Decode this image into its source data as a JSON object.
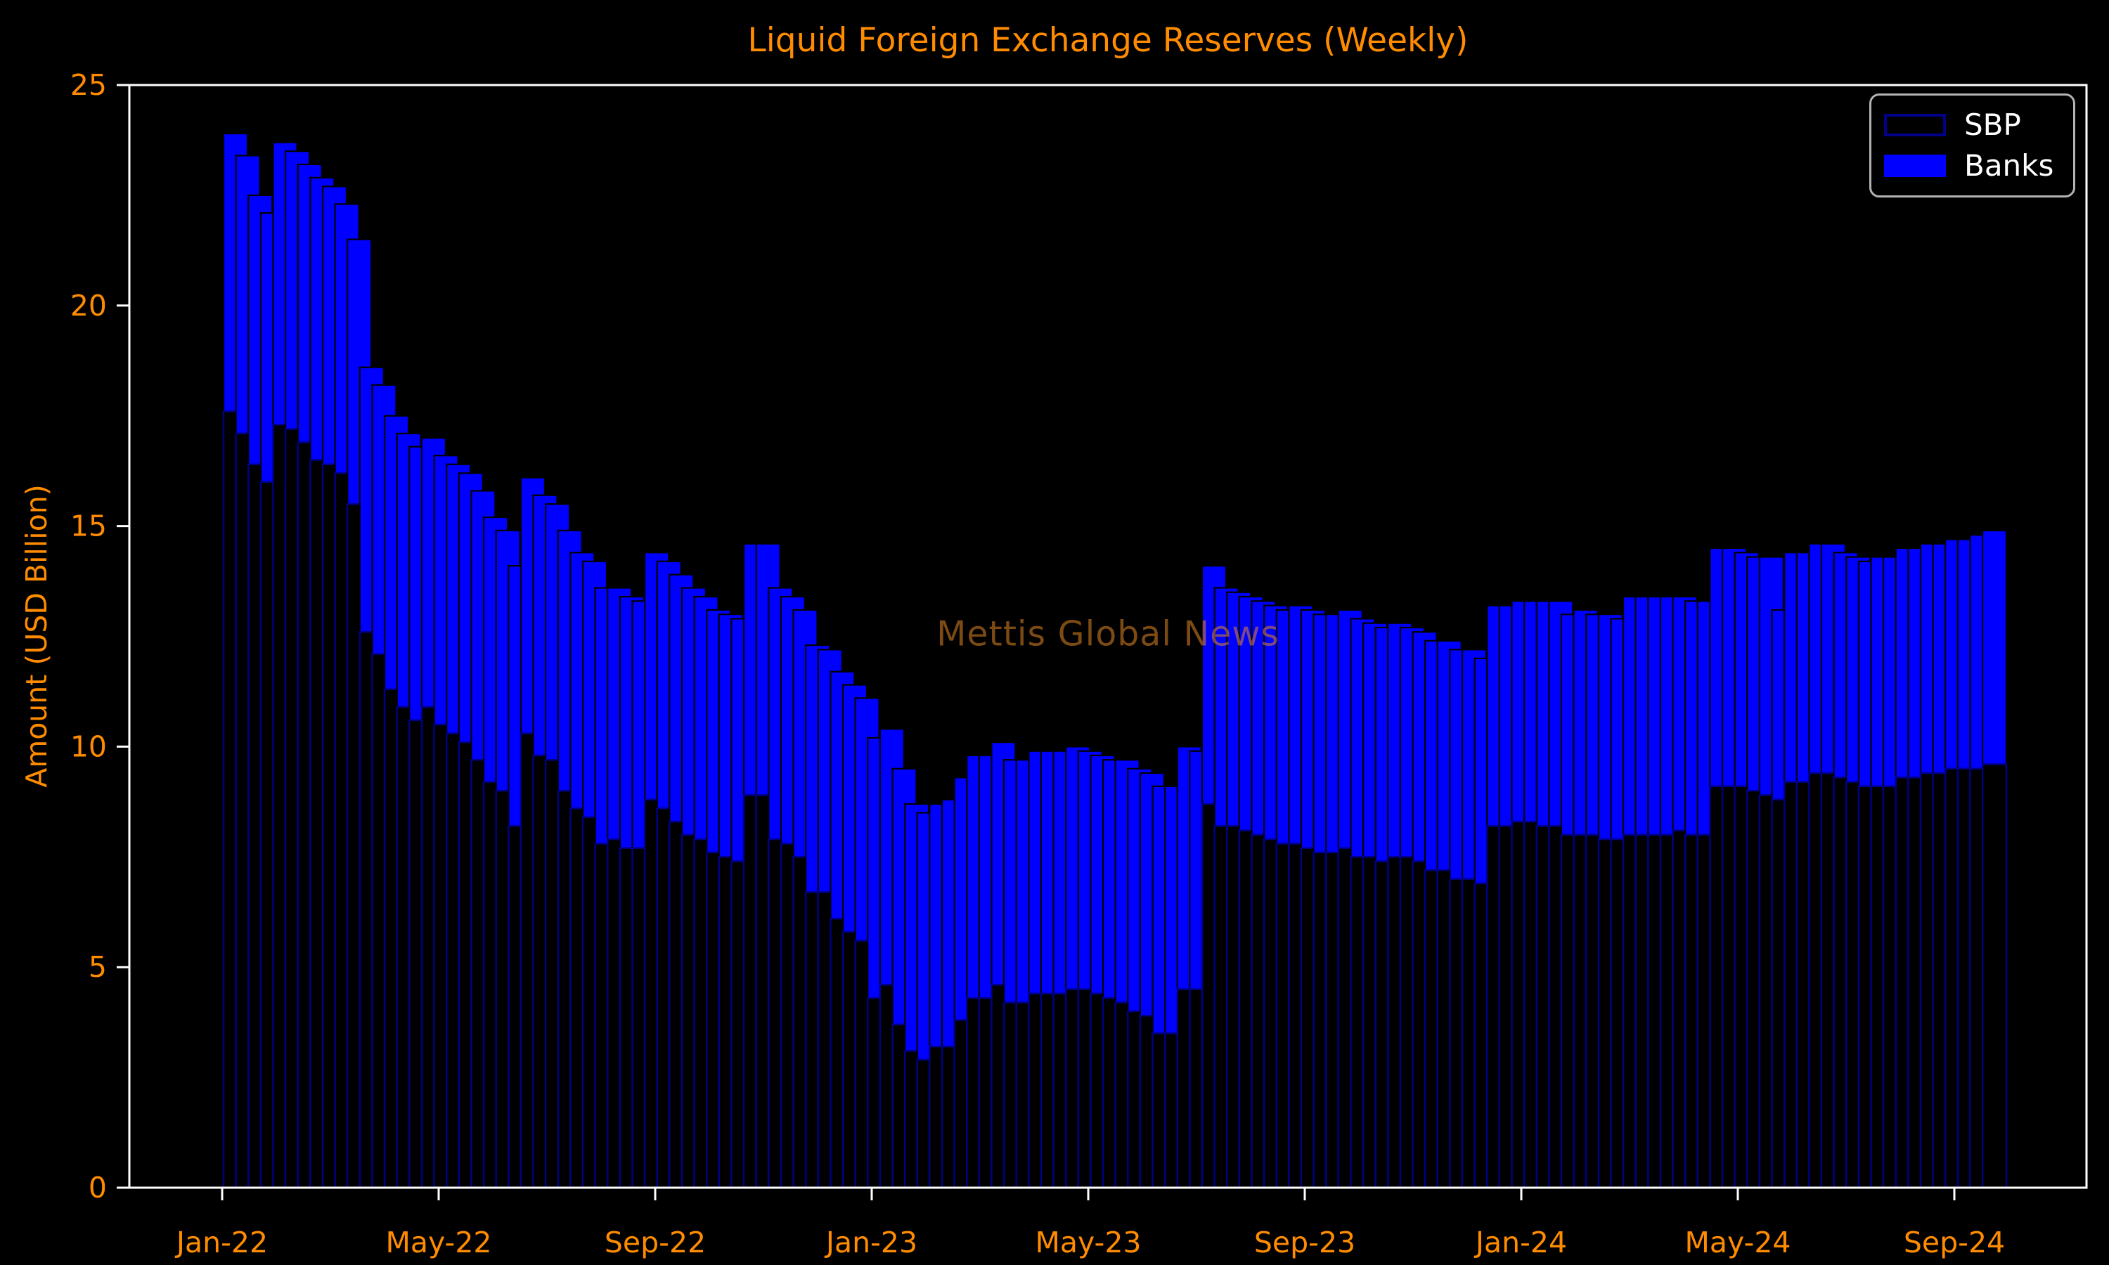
{
  "chart": {
    "title": "Liquid Foreign Exchange Reserves (Weekly)",
    "ylabel": "Amount (USD Billion)",
    "watermark": "Mettis Global News",
    "legend": {
      "items": [
        {
          "label": "SBP"
        },
        {
          "label": "Banks"
        }
      ]
    },
    "colors": {
      "background": "#000000",
      "accent_orange": "#FF8C00",
      "axis_white": "#FFFFFF",
      "sbp_edge_navy": "#00008B",
      "banks_blue": "#0000FF",
      "legend_border_gray": "#B3B3B3",
      "watermark_brown_orange": "rgba(226,135,35,0.55)"
    }
  },
  "chart_data": {
    "type": "bar",
    "stacked": true,
    "title": "Liquid Foreign Exchange Reserves (Weekly)",
    "xlabel": "",
    "ylabel": "Amount (USD Billion)",
    "ylim": [
      0,
      25
    ],
    "yticks": [
      0,
      5,
      10,
      15,
      20,
      25
    ],
    "xticklabels": [
      "Jan-22",
      "May-22",
      "Sep-22",
      "Jan-23",
      "May-23",
      "Sep-23",
      "Jan-24",
      "May-24",
      "Sep-24"
    ],
    "grid": false,
    "legend_position": "upper right",
    "frequency": "weekly",
    "units": "USD Billion",
    "weeks": [
      "2022-01-07",
      "2022-01-14",
      "2022-01-21",
      "2022-01-28",
      "2022-02-04",
      "2022-02-11",
      "2022-02-18",
      "2022-02-25",
      "2022-03-04",
      "2022-03-11",
      "2022-03-18",
      "2022-03-25",
      "2022-04-01",
      "2022-04-08",
      "2022-04-15",
      "2022-04-22",
      "2022-04-29",
      "2022-05-06",
      "2022-05-13",
      "2022-05-20",
      "2022-05-27",
      "2022-06-03",
      "2022-06-10",
      "2022-06-17",
      "2022-06-24",
      "2022-07-01",
      "2022-07-08",
      "2022-07-15",
      "2022-07-22",
      "2022-07-29",
      "2022-08-05",
      "2022-08-12",
      "2022-08-19",
      "2022-08-26",
      "2022-09-02",
      "2022-09-09",
      "2022-09-16",
      "2022-09-23",
      "2022-09-30",
      "2022-10-07",
      "2022-10-14",
      "2022-10-21",
      "2022-10-28",
      "2022-11-04",
      "2022-11-11",
      "2022-11-18",
      "2022-11-25",
      "2022-12-02",
      "2022-12-09",
      "2022-12-16",
      "2022-12-23",
      "2022-12-30",
      "2023-01-06",
      "2023-01-13",
      "2023-01-20",
      "2023-01-27",
      "2023-02-03",
      "2023-02-10",
      "2023-02-17",
      "2023-02-24",
      "2023-03-03",
      "2023-03-10",
      "2023-03-17",
      "2023-03-24",
      "2023-03-31",
      "2023-04-07",
      "2023-04-14",
      "2023-04-21",
      "2023-04-28",
      "2023-05-05",
      "2023-05-12",
      "2023-05-19",
      "2023-05-26",
      "2023-06-02",
      "2023-06-09",
      "2023-06-16",
      "2023-06-23",
      "2023-06-30",
      "2023-07-07",
      "2023-07-14",
      "2023-07-21",
      "2023-07-28",
      "2023-08-04",
      "2023-08-11",
      "2023-08-18",
      "2023-08-25",
      "2023-09-01",
      "2023-09-08",
      "2023-09-15",
      "2023-09-22",
      "2023-09-29",
      "2023-10-06",
      "2023-10-13",
      "2023-10-20",
      "2023-10-27",
      "2023-11-03",
      "2023-11-10",
      "2023-11-17",
      "2023-11-24",
      "2023-12-01",
      "2023-12-08",
      "2023-12-15",
      "2023-12-22",
      "2023-12-29",
      "2024-01-05",
      "2024-01-12",
      "2024-01-19",
      "2024-01-26",
      "2024-02-02",
      "2024-02-09",
      "2024-02-16",
      "2024-02-23",
      "2024-03-01",
      "2024-03-08",
      "2024-03-15",
      "2024-03-22",
      "2024-03-29",
      "2024-04-05",
      "2024-04-12",
      "2024-04-19",
      "2024-04-26",
      "2024-05-03",
      "2024-05-10",
      "2024-05-17",
      "2024-05-24",
      "2024-05-31",
      "2024-06-07",
      "2024-06-14",
      "2024-06-21",
      "2024-06-28",
      "2024-07-05",
      "2024-07-12",
      "2024-07-19",
      "2024-07-26",
      "2024-08-02",
      "2024-08-09",
      "2024-08-16",
      "2024-08-23",
      "2024-08-30",
      "2024-09-06",
      "2024-09-13",
      "2024-09-20",
      "2024-09-27"
    ],
    "series": [
      {
        "name": "SBP",
        "fill": "#000000",
        "edge": "#00008B",
        "values": [
          17.6,
          17.1,
          16.4,
          16.0,
          17.3,
          17.2,
          16.9,
          16.5,
          16.4,
          16.2,
          15.5,
          12.6,
          12.1,
          11.3,
          10.9,
          10.6,
          10.9,
          10.5,
          10.3,
          10.1,
          9.7,
          9.2,
          9.0,
          8.2,
          10.3,
          9.8,
          9.7,
          9.0,
          8.6,
          8.4,
          7.8,
          7.9,
          7.7,
          7.7,
          8.8,
          8.6,
          8.3,
          8.0,
          7.9,
          7.6,
          7.5,
          7.4,
          8.9,
          8.9,
          7.9,
          7.8,
          7.5,
          6.7,
          6.7,
          6.1,
          5.8,
          5.6,
          4.3,
          4.6,
          3.7,
          3.1,
          2.9,
          3.2,
          3.2,
          3.8,
          4.3,
          4.3,
          4.6,
          4.2,
          4.2,
          4.4,
          4.4,
          4.4,
          4.5,
          4.5,
          4.4,
          4.3,
          4.2,
          4.0,
          3.9,
          3.5,
          3.5,
          4.5,
          4.5,
          8.7,
          8.2,
          8.2,
          8.1,
          8.0,
          7.9,
          7.8,
          7.8,
          7.7,
          7.6,
          7.6,
          7.7,
          7.5,
          7.5,
          7.4,
          7.5,
          7.5,
          7.4,
          7.2,
          7.2,
          7.0,
          7.0,
          6.9,
          8.2,
          8.2,
          8.3,
          8.3,
          8.2,
          8.2,
          8.0,
          8.0,
          8.0,
          7.9,
          7.9,
          8.0,
          8.0,
          8.0,
          8.0,
          8.1,
          8.0,
          8.0,
          9.1,
          9.1,
          9.1,
          9.0,
          8.9,
          8.8,
          9.2,
          9.2,
          9.4,
          9.4,
          9.3,
          9.2,
          9.1,
          9.1,
          9.1,
          9.3,
          9.3,
          9.4,
          9.4,
          9.5,
          9.5,
          9.5,
          9.6
        ]
      },
      {
        "name": "Banks",
        "fill": "#0000FF",
        "edge": "#000000",
        "values": [
          6.3,
          6.3,
          6.1,
          6.1,
          6.4,
          6.3,
          6.3,
          6.4,
          6.3,
          6.1,
          6.0,
          6.0,
          6.1,
          6.2,
          6.2,
          6.2,
          6.1,
          6.1,
          6.1,
          6.1,
          6.1,
          6.0,
          5.9,
          5.9,
          5.8,
          5.9,
          5.8,
          5.9,
          5.8,
          5.8,
          5.8,
          5.7,
          5.7,
          5.6,
          5.6,
          5.6,
          5.6,
          5.6,
          5.5,
          5.5,
          5.5,
          5.5,
          5.7,
          5.7,
          5.7,
          5.6,
          5.6,
          5.6,
          5.5,
          5.6,
          5.6,
          5.5,
          5.9,
          5.8,
          5.8,
          5.6,
          5.6,
          5.5,
          5.6,
          5.5,
          5.5,
          5.5,
          5.5,
          5.5,
          5.5,
          5.5,
          5.5,
          5.5,
          5.5,
          5.4,
          5.4,
          5.4,
          5.5,
          5.5,
          5.5,
          5.6,
          5.6,
          5.5,
          5.4,
          5.4,
          5.4,
          5.3,
          5.3,
          5.3,
          5.3,
          5.3,
          5.4,
          5.4,
          5.4,
          5.4,
          5.4,
          5.4,
          5.3,
          5.3,
          5.3,
          5.2,
          5.2,
          5.2,
          5.2,
          5.2,
          5.2,
          5.1,
          5.0,
          5.0,
          5.0,
          5.0,
          5.1,
          5.1,
          5.0,
          5.1,
          5.0,
          5.1,
          5.0,
          5.4,
          5.4,
          5.4,
          5.4,
          5.3,
          5.3,
          5.3,
          5.4,
          5.4,
          5.3,
          5.3,
          5.4,
          4.3,
          5.2,
          5.2,
          5.2,
          5.2,
          5.1,
          5.1,
          5.1,
          5.2,
          5.2,
          5.2,
          5.2,
          5.2,
          5.2,
          5.2,
          5.2,
          5.3,
          5.3
        ]
      }
    ]
  }
}
